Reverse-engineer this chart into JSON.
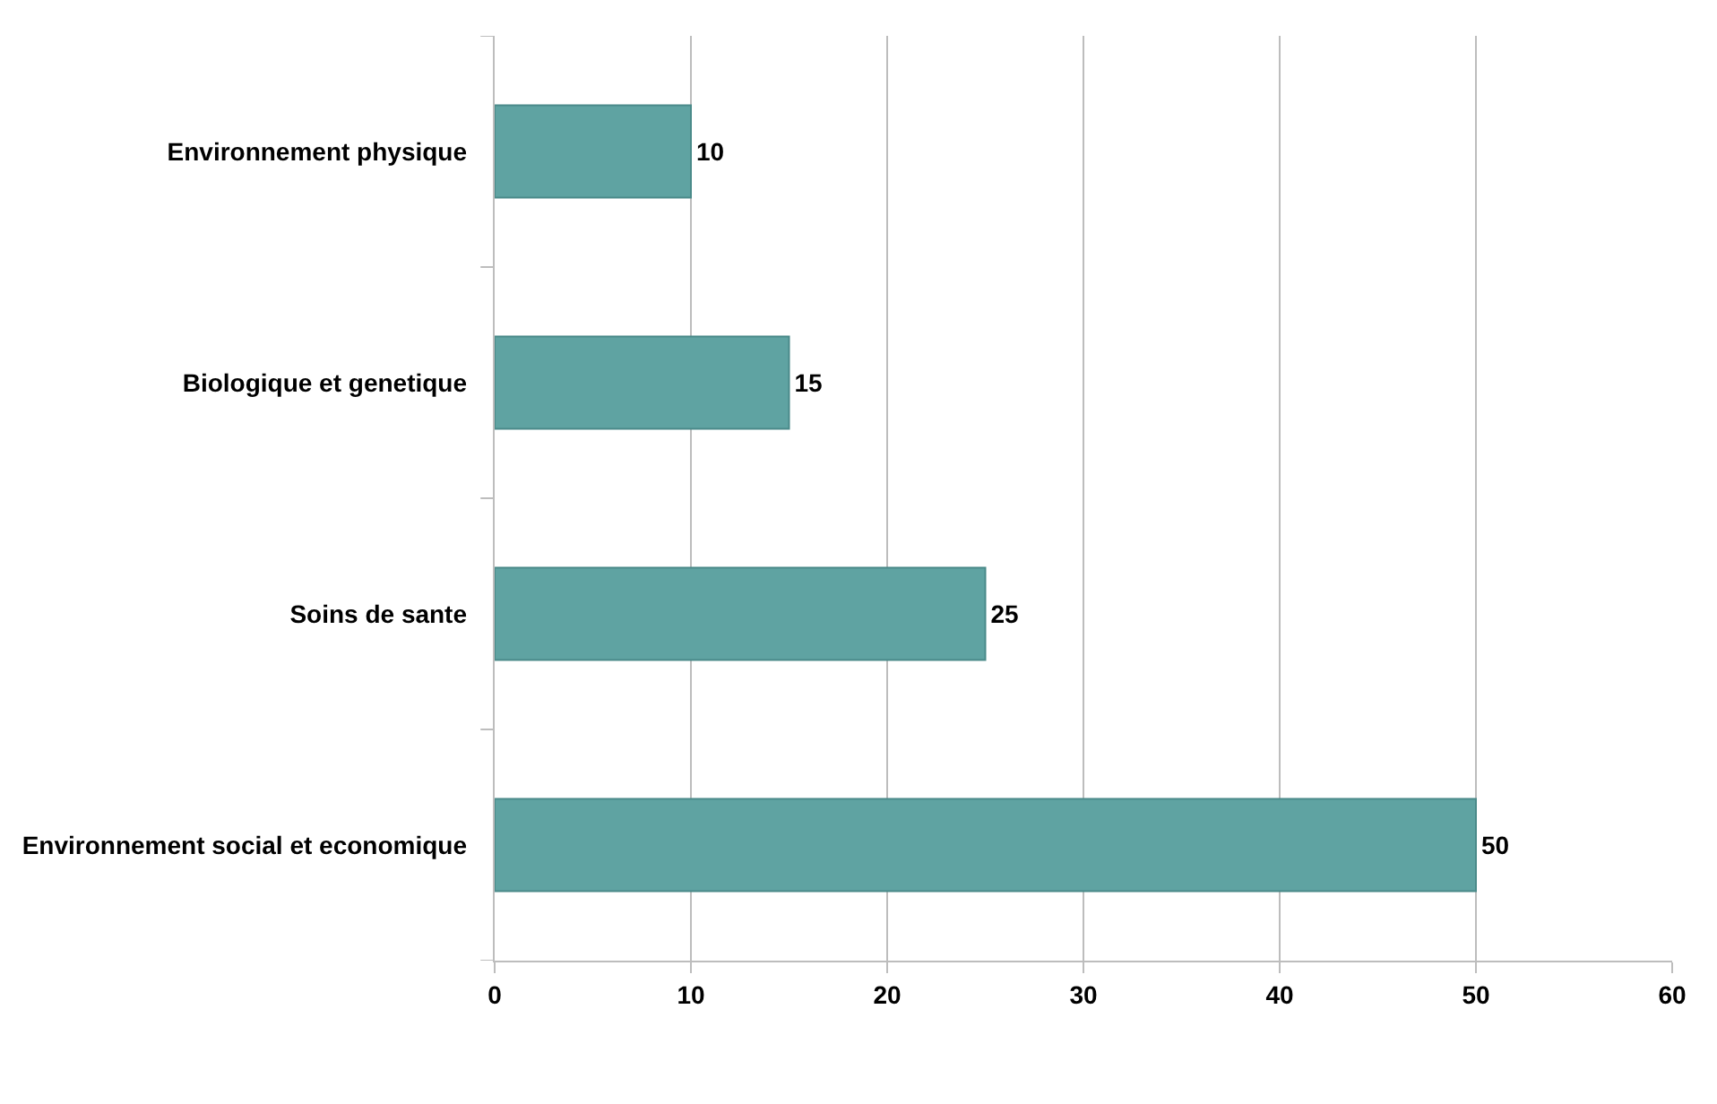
{
  "chart_data": {
    "type": "bar",
    "orientation": "horizontal",
    "categories": [
      "Environnement physique",
      "Biologique et genetique",
      "Soins de sante",
      "Environnement social et economique"
    ],
    "values": [
      10,
      15,
      25,
      50
    ],
    "color": "#5fa3a2",
    "xlim": [
      0,
      60
    ],
    "xticks": [
      0,
      10,
      20,
      30,
      40,
      50,
      60
    ],
    "grid": "x",
    "data_labels": true
  }
}
